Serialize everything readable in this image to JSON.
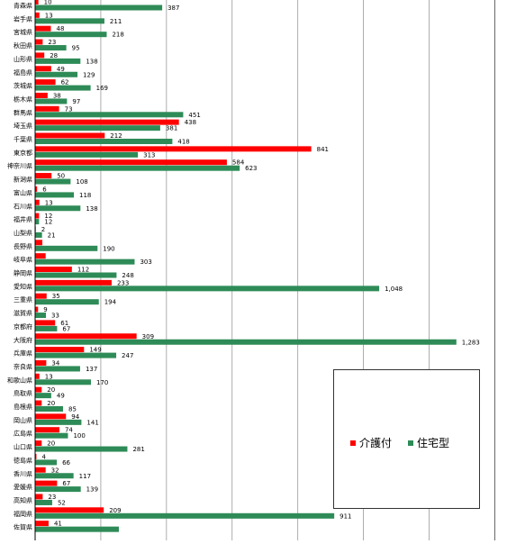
{
  "chart_data": {
    "type": "bar",
    "orientation": "horizontal",
    "categories": [
      "青森県",
      "岩手県",
      "宮城県",
      "秋田県",
      "山形県",
      "福島県",
      "茨城県",
      "栃木県",
      "群馬県",
      "埼玉県",
      "千葉県",
      "東京都",
      "神奈川県",
      "新潟県",
      "富山県",
      "石川県",
      "福井県",
      "山梨県",
      "長野県",
      "岐阜県",
      "静岡県",
      "愛知県",
      "三重県",
      "滋賀県",
      "京都府",
      "大阪府",
      "兵庫県",
      "奈良県",
      "和歌山県",
      "鳥取県",
      "島根県",
      "岡山県",
      "広島県",
      "山口県",
      "徳島県",
      "香川県",
      "愛媛県",
      "高知県",
      "福岡県",
      "佐賀県"
    ],
    "series": [
      {
        "name": "介護付",
        "color": "#ff0000",
        "values": [
          10,
          13,
          48,
          23,
          28,
          49,
          62,
          38,
          73,
          438,
          212,
          841,
          584,
          50,
          6,
          13,
          12,
          2,
          22,
          32,
          112,
          233,
          35,
          9,
          61,
          309,
          149,
          34,
          13,
          20,
          20,
          94,
          74,
          20,
          4,
          32,
          67,
          23,
          209,
          41
        ]
      },
      {
        "name": "住宅型",
        "color": "#2e8b57",
        "values": [
          387,
          211,
          218,
          95,
          138,
          129,
          169,
          97,
          451,
          381,
          418,
          313,
          623,
          108,
          118,
          138,
          12,
          21,
          190,
          303,
          248,
          1048,
          194,
          33,
          67,
          1283,
          247,
          137,
          170,
          49,
          85,
          141,
          100,
          281,
          66,
          117,
          139,
          52,
          911,
          255
        ]
      }
    ],
    "data_labels": {
      "介護付": [
        "10",
        "13",
        "48",
        "23",
        "28",
        "49",
        "62",
        "38",
        "73",
        "438",
        "212",
        "841",
        "584",
        "50",
        "6",
        "13",
        "12",
        "2",
        "",
        "",
        "112",
        "233",
        "35",
        "9",
        "61",
        "309",
        "149",
        "34",
        "13",
        "20",
        "20",
        "94",
        "74",
        "20",
        "4",
        "32",
        "67",
        "23",
        "209",
        "41"
      ],
      "住宅型": [
        "387",
        "211",
        "218",
        "95",
        "138",
        "129",
        "169",
        "97",
        "451",
        "381",
        "418",
        "313",
        "623",
        "108",
        "118",
        "138",
        "12",
        "21",
        "190",
        "303",
        "248",
        "1,048",
        "194",
        "33",
        "67",
        "1,283",
        "247",
        "137",
        "170",
        "49",
        "85",
        "141",
        "100",
        "281",
        "66",
        "117",
        "139",
        "52",
        "911",
        ""
      ]
    },
    "xlim": [
      0,
      1400
    ],
    "grid": true,
    "legend_position": "bottom-right"
  }
}
